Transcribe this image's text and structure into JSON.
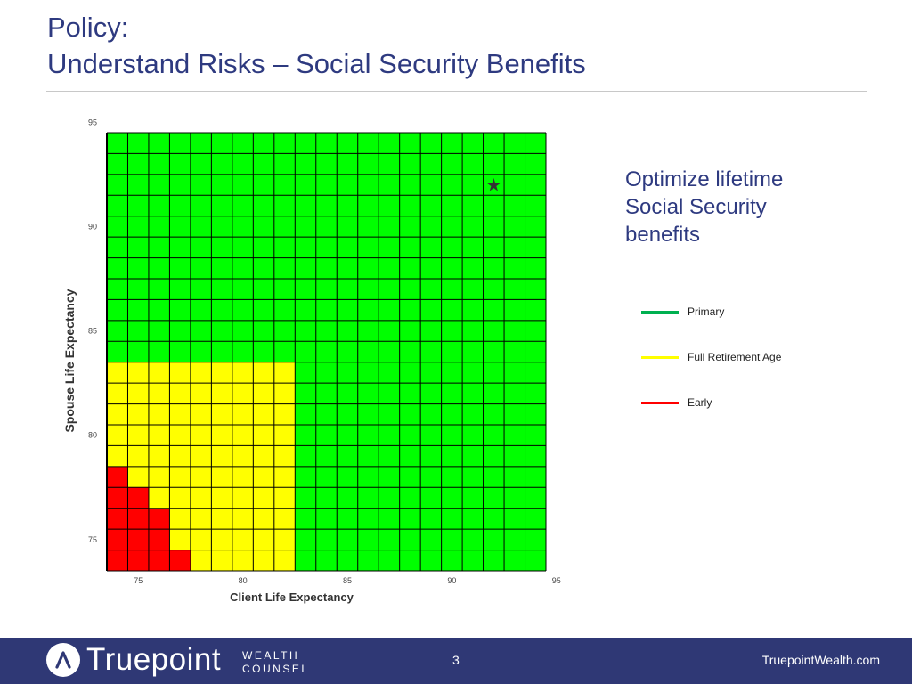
{
  "header": {
    "title_line1": "Policy:",
    "title_line2": "Understand Risks – Social Security Benefits"
  },
  "side_text": {
    "line1": "Optimize lifetime",
    "line2": "Social Security",
    "line3": "benefits"
  },
  "legend": [
    {
      "label": "Primary",
      "color": "#00b050"
    },
    {
      "label": "Full Retirement Age",
      "color": "#ffff00"
    },
    {
      "label": "Early",
      "color": "#ff0000"
    }
  ],
  "footer": {
    "logo_word": "Truepoint",
    "logo_sub1": "WEALTH",
    "logo_sub2": "COUNSEL",
    "page_number": "3",
    "site": "TruepointWealth.com"
  },
  "chart_data": {
    "type": "heatmap",
    "xlabel": "Client Life Expectancy",
    "ylabel": "Spouse Life Expectancy",
    "x_range": [
      74,
      95
    ],
    "y_range": [
      74,
      95
    ],
    "x_ticks": [
      75,
      80,
      85,
      90,
      95
    ],
    "y_ticks": [
      75,
      80,
      85,
      90,
      95
    ],
    "grid": true,
    "colors": {
      "green": "#00ff00",
      "yellow": "#ffff00",
      "red": "#ff0000"
    },
    "yellow_region": {
      "client_max": 83,
      "spouse_max": 84
    },
    "red_cells": [
      [
        74,
        74
      ],
      [
        75,
        74
      ],
      [
        76,
        74
      ],
      [
        77,
        74
      ],
      [
        74,
        75
      ],
      [
        75,
        75
      ],
      [
        76,
        75
      ],
      [
        74,
        76
      ],
      [
        75,
        76
      ],
      [
        76,
        76
      ],
      [
        74,
        77
      ],
      [
        75,
        77
      ],
      [
        74,
        78
      ]
    ],
    "marker": {
      "symbol": "star",
      "client": 92,
      "spouse": 92
    }
  }
}
